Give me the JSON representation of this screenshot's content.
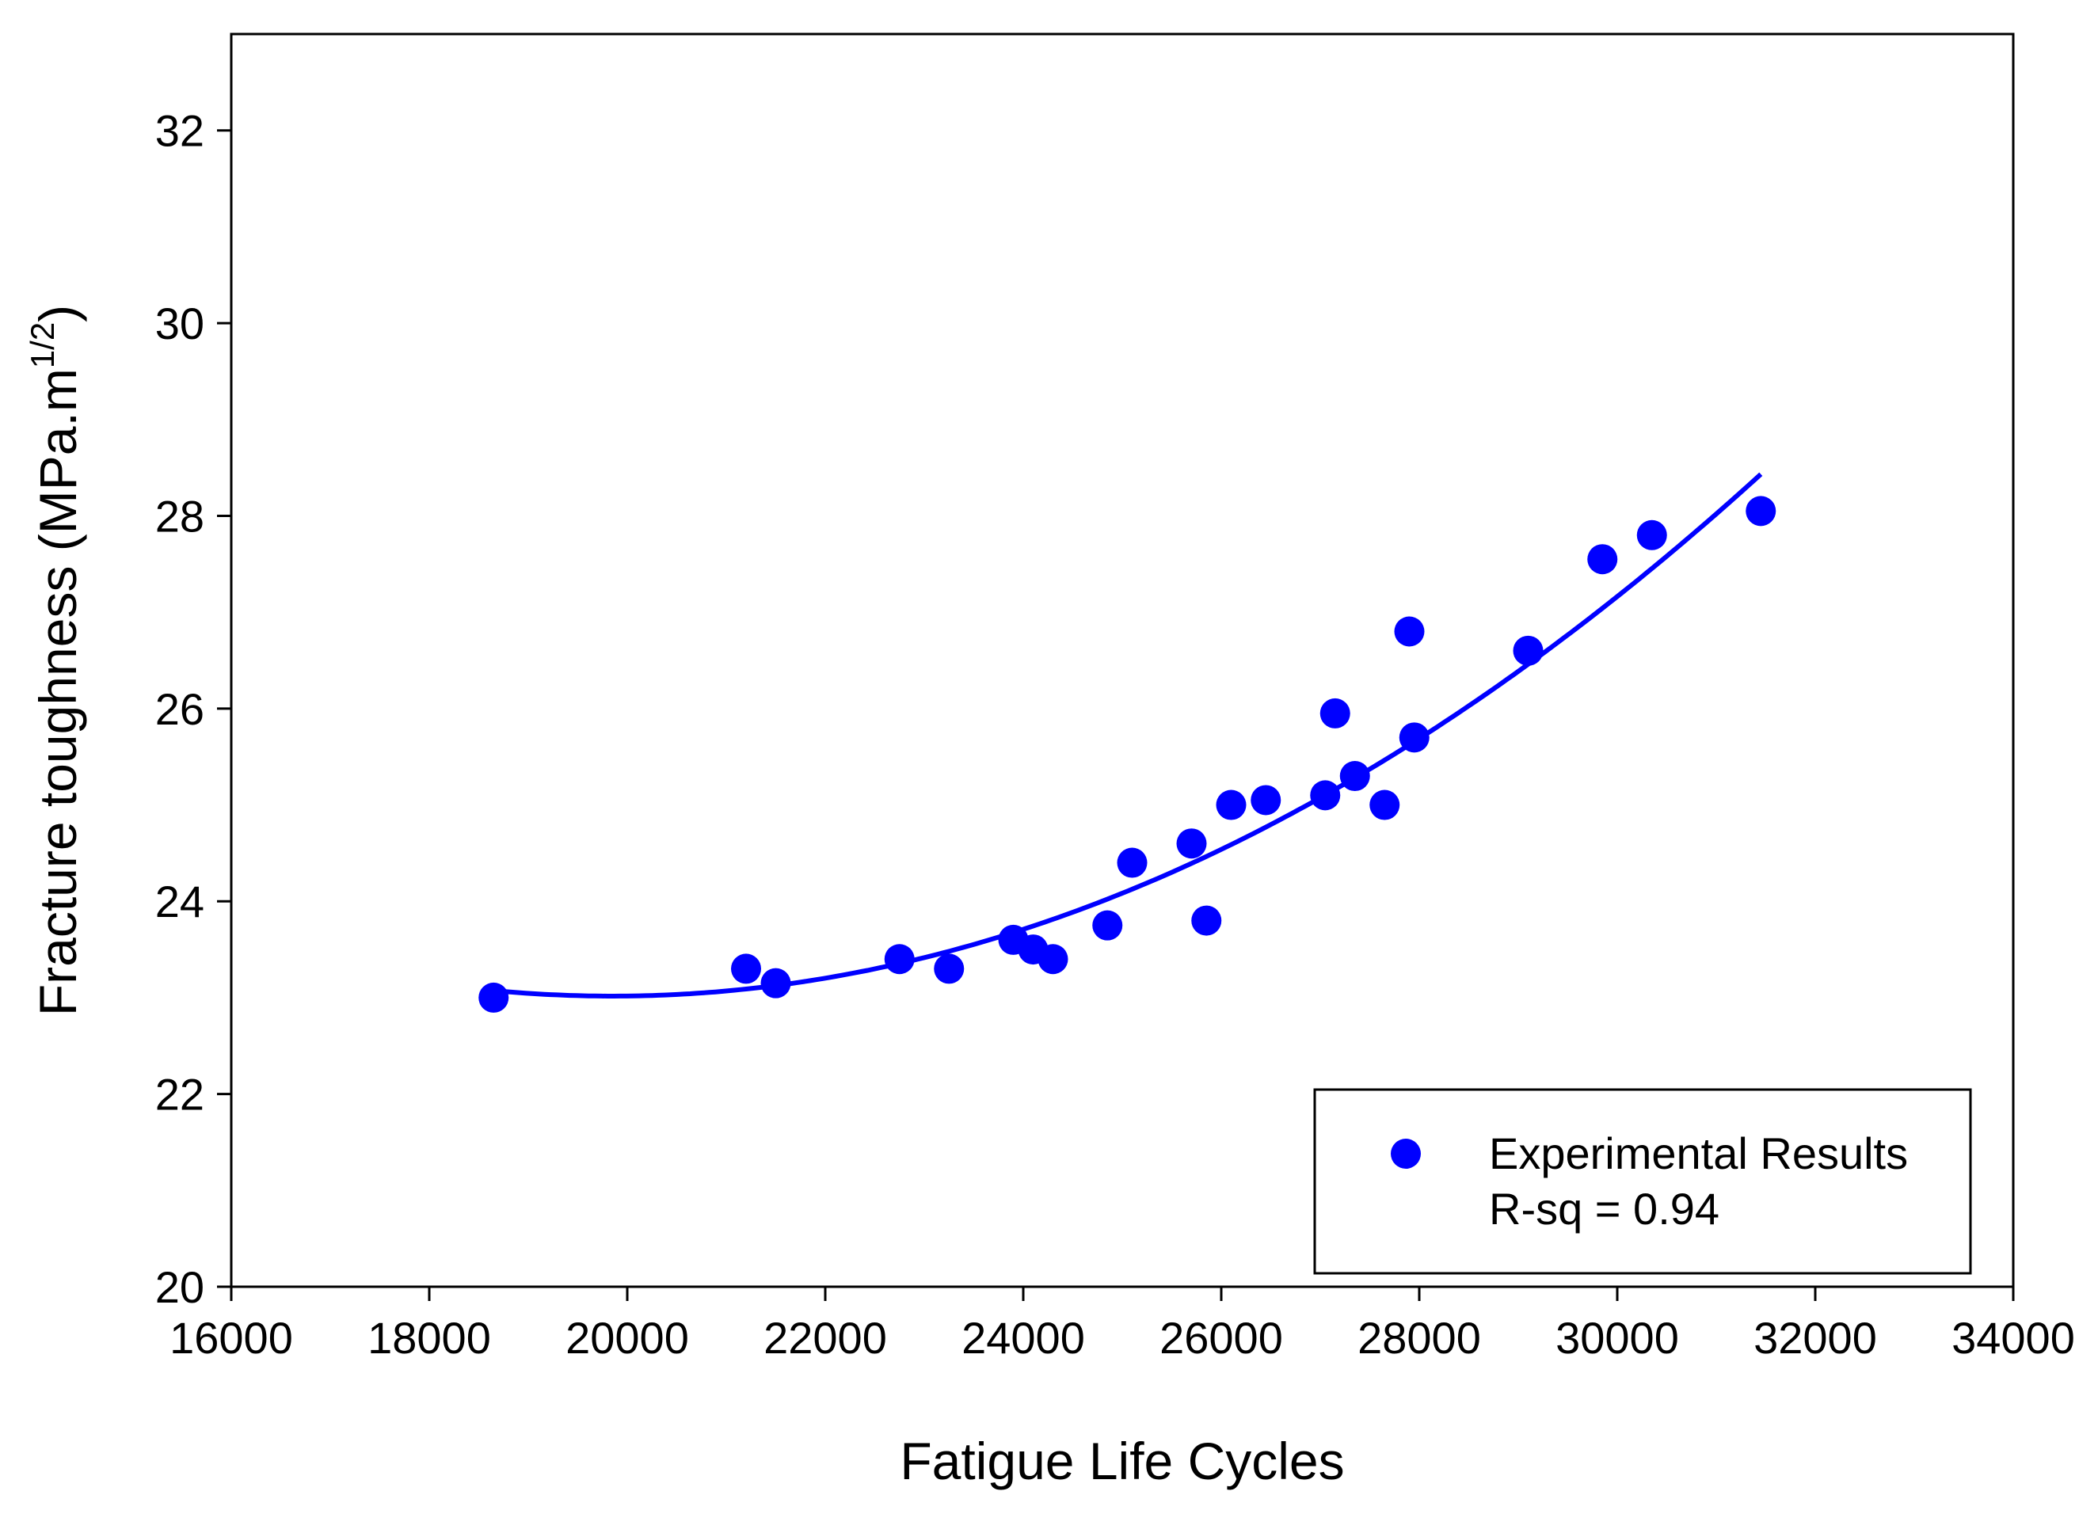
{
  "chart_data": {
    "type": "scatter",
    "xlabel": "Fatigue Life Cycles",
    "ylabel": "Fracture toughness (MPa.m",
    "ylabel_superscript": "1/2",
    "ylabel_close": ")",
    "xlim": [
      16000,
      34000
    ],
    "ylim": [
      20,
      33
    ],
    "x_ticks": [
      16000,
      18000,
      20000,
      22000,
      24000,
      26000,
      28000,
      30000,
      32000,
      34000
    ],
    "y_ticks": [
      20,
      22,
      24,
      26,
      28,
      30,
      32
    ],
    "grid": false,
    "legend_position": "bottom-right",
    "series": [
      {
        "name": "Experimental Results",
        "marker": "circle",
        "color": "#0000ff",
        "points": [
          [
            18650,
            23.0
          ],
          [
            21200,
            23.3
          ],
          [
            21500,
            23.15
          ],
          [
            22750,
            23.4
          ],
          [
            23250,
            23.3
          ],
          [
            23900,
            23.6
          ],
          [
            24100,
            23.5
          ],
          [
            24300,
            23.4
          ],
          [
            24850,
            23.75
          ],
          [
            25100,
            24.4
          ],
          [
            25700,
            24.6
          ],
          [
            25850,
            23.8
          ],
          [
            26100,
            25.0
          ],
          [
            26450,
            25.05
          ],
          [
            27050,
            25.1
          ],
          [
            27150,
            25.95
          ],
          [
            27350,
            25.3
          ],
          [
            27650,
            25.0
          ],
          [
            27900,
            26.8
          ],
          [
            27950,
            25.7
          ],
          [
            29100,
            26.6
          ],
          [
            29850,
            27.55
          ],
          [
            30350,
            27.8
          ],
          [
            31450,
            28.05
          ]
        ]
      }
    ],
    "fit": {
      "type": "quadratic",
      "color": "#0000ff",
      "x_range": [
        18650,
        31450
      ],
      "points": [
        [
          18650,
          23.2
        ],
        [
          20700,
          22.88
        ],
        [
          24500,
          23.78
        ],
        [
          27500,
          25.6
        ],
        [
          31450,
          28.35
        ]
      ]
    },
    "legend": {
      "entries": [
        "Experimental Results"
      ],
      "stat_text": "R-sq = 0.94"
    }
  }
}
